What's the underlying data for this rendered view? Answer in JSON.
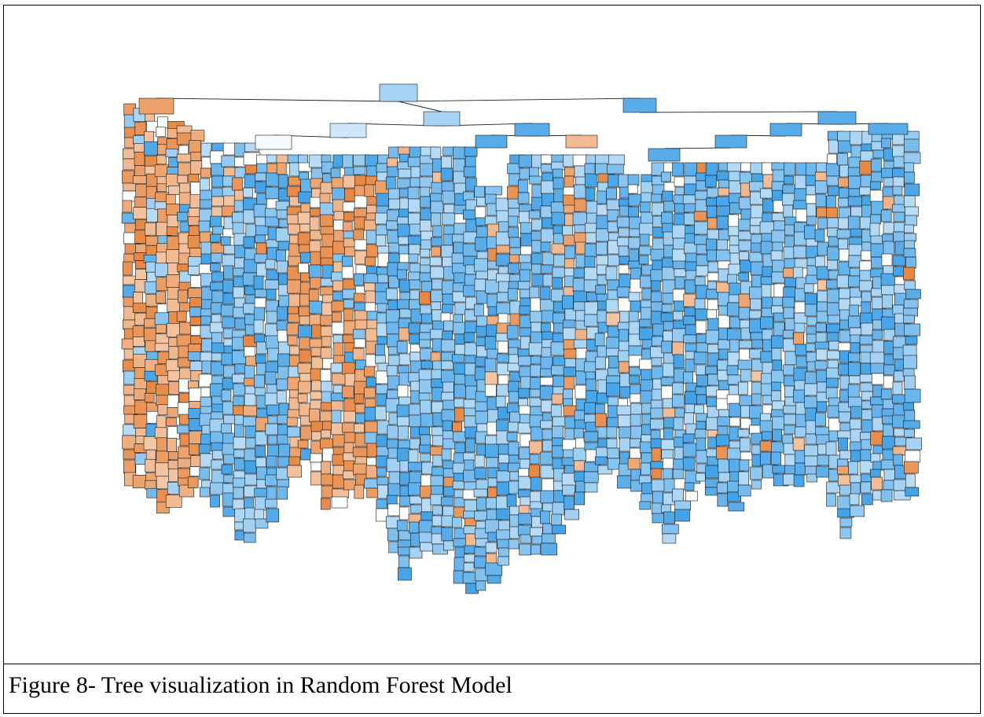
{
  "caption": "Figure 8- Tree visualization in Random Forest Model",
  "tree": {
    "description_visible_text": "",
    "class_colors": {
      "class_0": "#e58139",
      "class_1": "#399de5",
      "impure": "#ffffff",
      "edge": "#222222",
      "border": "#1a1a1a"
    }
  }
}
